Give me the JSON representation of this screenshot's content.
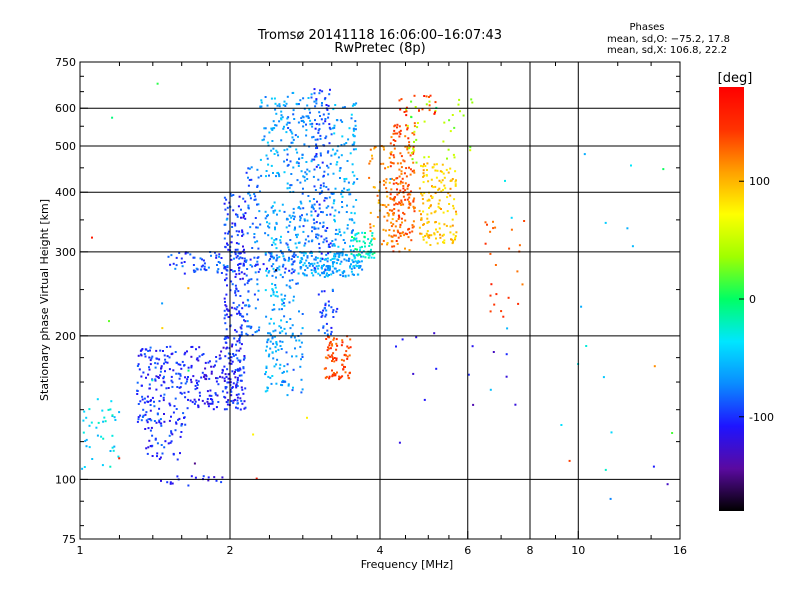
{
  "header": {
    "title_line1": "Tromsø 20141118 16:06:00–16:07:43",
    "title_line2": "RwPretec (8p)"
  },
  "phase_box": {
    "title": "Phases",
    "line_o": "mean, sd,O: −75.2, 17.8",
    "line_x": "mean, sd,X: 106.8, 22.2"
  },
  "chart_data": {
    "type": "scatter",
    "xlabel": "Frequency [MHz]",
    "ylabel": "Stationary phase Virtual Height [km]",
    "x_scale": "log",
    "y_scale": "log",
    "xlim": [
      1,
      16
    ],
    "ylim": [
      75,
      750
    ],
    "x_ticks": [
      1,
      2,
      4,
      6,
      8,
      10,
      16
    ],
    "y_ticks": [
      75,
      100,
      200,
      300,
      400,
      500,
      600,
      750
    ],
    "x_grid": [
      2,
      4,
      6,
      8,
      10
    ],
    "y_grid": [
      100,
      200,
      300,
      400,
      500,
      600
    ],
    "grid": true,
    "colorbar": {
      "label": "[deg]",
      "range": [
        -180,
        180
      ],
      "ticks": [
        -100,
        0,
        100
      ],
      "colors": [
        "#000000",
        "#5a0aa0",
        "#1e14ff",
        "#0a8cff",
        "#00e6ff",
        "#00ff64",
        "#a0ff00",
        "#ffff00",
        "#ffa000",
        "#ff3200",
        "#ff0000"
      ]
    },
    "clusters": [
      {
        "f": [
          1.0,
          1.2
        ],
        "h": [
          105,
          150
        ],
        "phase": -40,
        "n": 40
      },
      {
        "f": [
          1.3,
          1.65
        ],
        "h": [
          130,
          190
        ],
        "phase": -100,
        "n": 180
      },
      {
        "f": [
          1.65,
          2.1
        ],
        "h": [
          140,
          190
        ],
        "phase": -110,
        "n": 140
      },
      {
        "f": [
          1.35,
          1.6
        ],
        "h": [
          110,
          130
        ],
        "phase": -100,
        "n": 40
      },
      {
        "f": [
          1.45,
          1.95
        ],
        "h": [
          97,
          102
        ],
        "phase": -110,
        "n": 18
      },
      {
        "f": [
          1.95,
          2.15
        ],
        "h": [
          140,
          400
        ],
        "phase": -100,
        "n": 230
      },
      {
        "f": [
          2.15,
          2.3
        ],
        "h": [
          200,
          460
        ],
        "phase": -80,
        "n": 80
      },
      {
        "f": [
          2.35,
          2.55
        ],
        "h": [
          150,
          390
        ],
        "phase": -60,
        "n": 140
      },
      {
        "f": [
          2.55,
          2.8
        ],
        "h": [
          150,
          380
        ],
        "phase": -70,
        "n": 90
      },
      {
        "f": [
          1.5,
          2.7
        ],
        "h": [
          270,
          300
        ],
        "phase": -90,
        "n": 120
      },
      {
        "f": [
          2.3,
          2.6
        ],
        "h": [
          430,
          640
        ],
        "phase": -60,
        "n": 70
      },
      {
        "f": [
          2.6,
          2.95
        ],
        "h": [
          300,
          650
        ],
        "phase": -70,
        "n": 150
      },
      {
        "f": [
          2.95,
          3.2
        ],
        "h": [
          270,
          660
        ],
        "phase": -90,
        "n": 150
      },
      {
        "f": [
          3.2,
          3.6
        ],
        "h": [
          280,
          620
        ],
        "phase": -60,
        "n": 140
      },
      {
        "f": [
          2.75,
          3.7
        ],
        "h": [
          265,
          300
        ],
        "phase": -60,
        "n": 160
      },
      {
        "f": [
          3.0,
          3.3
        ],
        "h": [
          200,
          250
        ],
        "phase": -90,
        "n": 35
      },
      {
        "f": [
          3.5,
          3.9
        ],
        "h": [
          290,
          330
        ],
        "phase": -20,
        "n": 50
      },
      {
        "f": [
          3.8,
          4.3
        ],
        "h": [
          310,
          500
        ],
        "phase": 110,
        "n": 70
      },
      {
        "f": [
          4.2,
          4.7
        ],
        "h": [
          300,
          560
        ],
        "phase": 130,
        "n": 180
      },
      {
        "f": [
          4.8,
          5.7
        ],
        "h": [
          310,
          460
        ],
        "phase": 95,
        "n": 150
      },
      {
        "f": [
          3.1,
          3.5
        ],
        "h": [
          160,
          200
        ],
        "phase": 140,
        "n": 80
      },
      {
        "f": [
          4.5,
          6.2
        ],
        "h": [
          460,
          630
        ],
        "phase": 40,
        "n": 40
      },
      {
        "f": [
          4.2,
          5.2
        ],
        "h": [
          580,
          640
        ],
        "phase": 150,
        "n": 20
      },
      {
        "f": [
          6.5,
          8.0
        ],
        "h": [
          200,
          360
        ],
        "phase": 140,
        "n": 25
      },
      {
        "f": [
          4.0,
          7.5
        ],
        "h": [
          115,
          200
        ],
        "phase": -120,
        "n": 14
      },
      {
        "f": [
          7.0,
          13.0
        ],
        "h": [
          100,
          600
        ],
        "phase": -40,
        "n": 14
      },
      {
        "f": [
          1.0,
          16.0
        ],
        "h": [
          78,
          700
        ],
        "phase": 0,
        "n": 30
      }
    ]
  }
}
